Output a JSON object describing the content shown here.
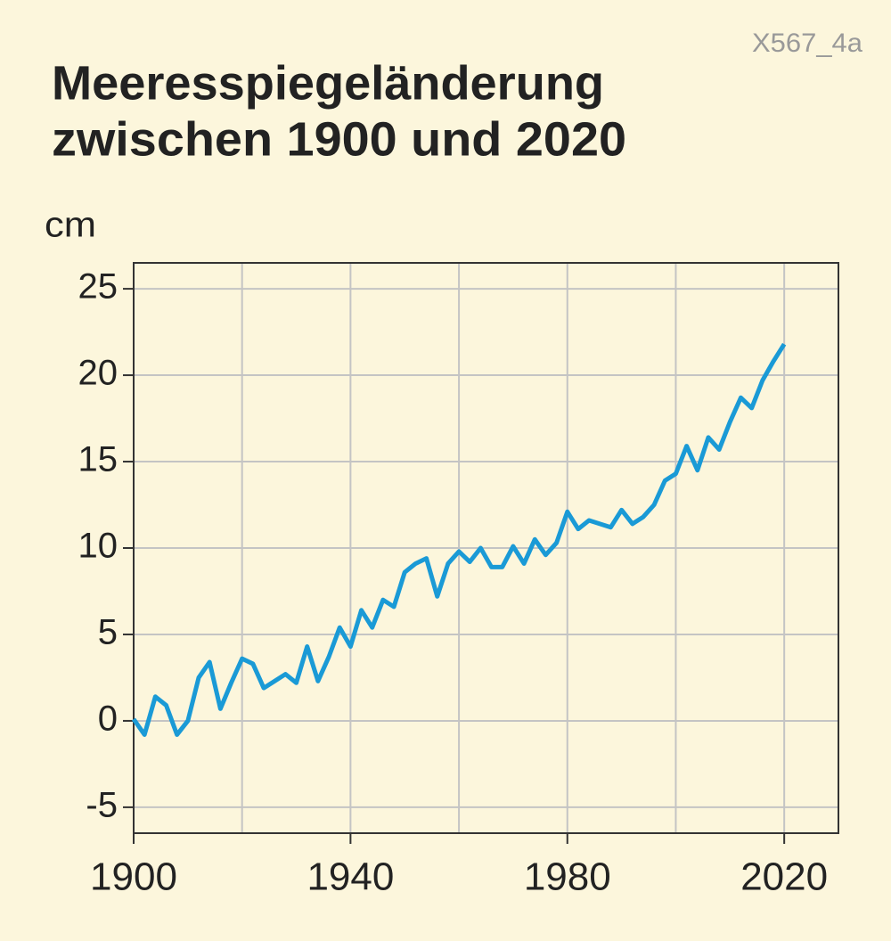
{
  "chart_data": {
    "type": "line",
    "title": [
      "Meeresspiegeländerung",
      "zwischen 1900 und 2020"
    ],
    "code": "X567_4a",
    "y_label": "cm",
    "x": [
      1900,
      1902,
      1904,
      1906,
      1908,
      1910,
      1912,
      1914,
      1916,
      1918,
      1920,
      1922,
      1924,
      1926,
      1928,
      1930,
      1932,
      1934,
      1936,
      1938,
      1940,
      1942,
      1944,
      1946,
      1948,
      1950,
      1952,
      1954,
      1956,
      1958,
      1960,
      1962,
      1964,
      1966,
      1968,
      1970,
      1972,
      1974,
      1976,
      1978,
      1980,
      1982,
      1984,
      1986,
      1988,
      1990,
      1992,
      1994,
      1996,
      1998,
      2000,
      2002,
      2004,
      2006,
      2008,
      2010,
      2012,
      2014,
      2016,
      2018,
      2020
    ],
    "series": [
      {
        "color": "#1a9ad6",
        "values": [
          0.1,
          -0.8,
          1.4,
          0.9,
          -0.8,
          0,
          2.5,
          3.4,
          0.7,
          2.2,
          3.6,
          3.3,
          1.9,
          2.3,
          2.7,
          2.2,
          4.3,
          2.3,
          3.7,
          5.4,
          4.3,
          6.4,
          5.4,
          7.0,
          6.6,
          8.6,
          9.1,
          9.4,
          7.2,
          9.1,
          9.8,
          9.2,
          10.0,
          8.9,
          8.9,
          10.1,
          9.1,
          10.5,
          9.6,
          10.3,
          12.1,
          11.1,
          11.6,
          11.4,
          11.2,
          12.2,
          11.4,
          11.8,
          12.5,
          13.9,
          14.3,
          15.9,
          14.5,
          16.4,
          15.7,
          17.3,
          18.7,
          18.1,
          19.7,
          20.8,
          21.8
        ]
      }
    ],
    "xlim": [
      1900,
      2030
    ],
    "xticks": [
      1900,
      1940,
      1980,
      2020
    ],
    "xgrid": [
      1900,
      1920,
      1940,
      1960,
      1980,
      2000,
      2020
    ],
    "ylim": [
      -6.5,
      26.5
    ],
    "yticks": [
      -5,
      0,
      5,
      10,
      15,
      20,
      25
    ],
    "grid": true
  }
}
